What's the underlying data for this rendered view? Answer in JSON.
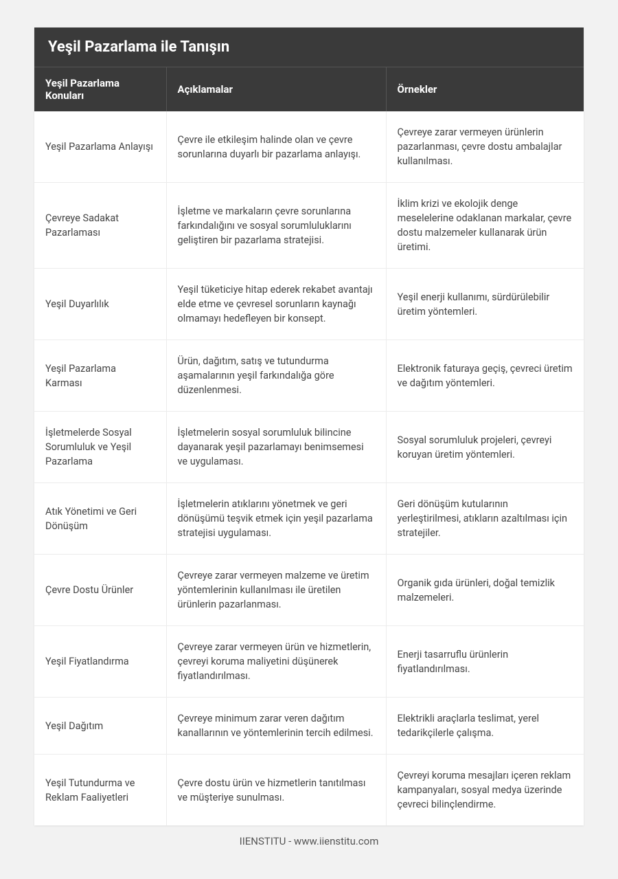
{
  "title": "Yeşil Pazarlama ile Tanışın",
  "columns": [
    "Yeşil Pazarlama Konuları",
    "Açıklamalar",
    "Örnekler"
  ],
  "rows": [
    {
      "topic": "Yeşil Pazarlama Anlayışı",
      "desc": "Çevre ile etkileşim halinde olan ve çevre sorunlarına duyarlı bir pazarlama anlayışı.",
      "example": "Çevreye zarar vermeyen ürünlerin pazarlanması, çevre dostu ambalajlar kullanılması."
    },
    {
      "topic": "Çevreye Sadakat Pazarlaması",
      "desc": "İşletme ve markaların çevre sorunlarına farkındalığını ve sosyal sorumluluklarını geliştiren bir pazarlama stratejisi.",
      "example": "İklim krizi ve ekolojik denge meselelerine odaklanan markalar, çevre dostu malzemeler kullanarak ürün üretimi."
    },
    {
      "topic": "Yeşil Duyarlılık",
      "desc": "Yeşil tüketiciye hitap ederek rekabet avantajı elde etme ve çevresel sorunların kaynağı olmamayı hedefleyen bir konsept.",
      "example": "Yeşil enerji kullanımı, sürdürülebilir üretim yöntemleri."
    },
    {
      "topic": "Yeşil Pazarlama Karması",
      "desc": "Ürün, dağıtım, satış ve tutundurma aşamalarının yeşil farkındalığa göre düzenlenmesi.",
      "example": "Elektronik faturaya geçiş, çevreci üretim ve dağıtım yöntemleri."
    },
    {
      "topic": "İşletmelerde Sosyal Sorumluluk ve Yeşil Pazarlama",
      "desc": "İşletmelerin sosyal sorumluluk bilincine dayanarak yeşil pazarlamayı benimsemesi ve uygulaması.",
      "example": "Sosyal sorumluluk projeleri, çevreyi koruyan üretim yöntemleri."
    },
    {
      "topic": "Atık Yönetimi ve Geri Dönüşüm",
      "desc": "İşletmelerin atıklarını yönetmek ve geri dönüşümü teşvik etmek için yeşil pazarlama stratejisi uygulaması.",
      "example": "Geri dönüşüm kutularının yerleştirilmesi, atıkların azaltılması için stratejiler."
    },
    {
      "topic": "Çevre Dostu Ürünler",
      "desc": "Çevreye zarar vermeyen malzeme ve üretim yöntemlerinin kullanılması ile üretilen ürünlerin pazarlanması.",
      "example": "Organik gıda ürünleri, doğal temizlik malzemeleri."
    },
    {
      "topic": "Yeşil Fiyatlandırma",
      "desc": "Çevreye zarar vermeyen ürün ve hizmetlerin, çevreyi koruma maliyetini düşünerek fiyatlandırılması.",
      "example": "Enerji tasarruflu ürünlerin fiyatlandırılması."
    },
    {
      "topic": "Yeşil Dağıtım",
      "desc": "Çevreye minimum zarar veren dağıtım kanallarının ve yöntemlerinin tercih edilmesi.",
      "example": "Elektrikli araçlarla teslimat, yerel tedarikçilerle çalışma."
    },
    {
      "topic": "Yeşil Tutundurma ve Reklam Faaliyetleri",
      "desc": "Çevre dostu ürün ve hizmetlerin tanıtılması ve müşteriye sunulması.",
      "example": "Çevreyi koruma mesajları içeren reklam kampanyaları, sosyal medya üzerinde çevreci bilinçlendirme."
    }
  ],
  "footer": "IIENSTITU - www.iienstitu.com",
  "styles": {
    "page_bg": "#f2f2f2",
    "header_bg": "#3a3a3a",
    "header_text": "#ffffff",
    "cell_text": "#444444",
    "border_color": "#ececec",
    "title_fontsize": 22,
    "header_fontsize": 15,
    "cell_fontsize": 14.5,
    "column_widths_pct": [
      24,
      40,
      36
    ]
  }
}
